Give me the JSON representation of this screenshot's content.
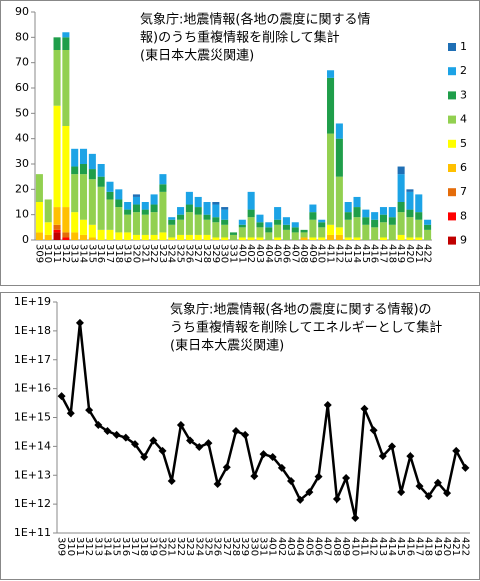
{
  "chart_data": [
    {
      "type": "stacked_bar",
      "title": [
        "気象庁:地震情報(各地の震度に関する情",
        "報)のうち重複情報を削除して集計",
        "(東日本大震災関連)"
      ],
      "categories": [
        "309",
        "310",
        "311",
        "312",
        "313",
        "314",
        "315",
        "316",
        "317",
        "318",
        "319",
        "320",
        "321",
        "322",
        "323",
        "324",
        "325",
        "326",
        "327",
        "328",
        "329",
        "330",
        "331",
        "401",
        "402",
        "403",
        "404",
        "405",
        "406",
        "407",
        "408",
        "409",
        "410",
        "411",
        "412",
        "413",
        "414",
        "415",
        "416",
        "417",
        "418",
        "419",
        "420",
        "421",
        "422"
      ],
      "ylim": [
        0,
        90
      ],
      "yticks": [
        0,
        10,
        20,
        30,
        40,
        50,
        60,
        70,
        80,
        90
      ],
      "grid": false,
      "legend": "right",
      "series": [
        {
          "name": "1",
          "color": "#1f6fb5",
          "values": [
            0,
            0,
            0,
            0,
            0,
            0,
            0,
            0,
            0,
            0,
            0,
            1,
            0,
            0,
            0,
            0,
            0,
            0,
            0,
            0,
            1,
            1,
            0,
            0,
            0,
            0,
            0,
            0,
            0,
            0,
            0,
            0,
            0,
            0,
            0,
            0,
            0,
            0,
            0,
            0,
            0,
            3,
            1,
            0,
            0
          ]
        },
        {
          "name": "2",
          "color": "#1ca3e6",
          "values": [
            0,
            0,
            0,
            2,
            7,
            6,
            6,
            5,
            4,
            4,
            3,
            3,
            3,
            4,
            4,
            1,
            3,
            5,
            4,
            5,
            5,
            4,
            0,
            2,
            7,
            3,
            2,
            5,
            3,
            2,
            0,
            3,
            1,
            3,
            6,
            4,
            4,
            3,
            3,
            3,
            4,
            11,
            7,
            7,
            2
          ]
        },
        {
          "name": "3",
          "color": "#1f9e4a",
          "values": [
            0,
            0,
            5,
            5,
            3,
            4,
            4,
            4,
            3,
            3,
            2,
            3,
            2,
            3,
            3,
            2,
            2,
            3,
            3,
            2,
            2,
            2,
            1,
            1,
            3,
            2,
            2,
            2,
            2,
            2,
            1,
            3,
            2,
            22,
            15,
            3,
            4,
            3,
            3,
            3,
            3,
            4,
            3,
            3,
            2
          ]
        },
        {
          "name": "4",
          "color": "#92d050",
          "values": [
            11,
            9,
            22,
            30,
            15,
            18,
            18,
            17,
            12,
            10,
            7,
            9,
            8,
            9,
            16,
            5,
            6,
            9,
            8,
            6,
            6,
            5,
            2,
            4,
            8,
            4,
            3,
            5,
            4,
            3,
            2,
            7,
            4,
            36,
            20,
            7,
            8,
            6,
            5,
            6,
            6,
            9,
            8,
            7,
            4
          ]
        },
        {
          "name": "5",
          "color": "#ffff00",
          "values": [
            12,
            5,
            40,
            32,
            8,
            6,
            5,
            4,
            4,
            3,
            3,
            2,
            2,
            2,
            3,
            1,
            2,
            2,
            2,
            2,
            1,
            1,
            0,
            1,
            1,
            1,
            0,
            1,
            0,
            0,
            0,
            1,
            1,
            4,
            3,
            1,
            1,
            0,
            0,
            1,
            0,
            2,
            1,
            1,
            0
          ]
        },
        {
          "name": "6",
          "color": "#ffc000",
          "values": [
            3,
            2,
            7,
            10,
            3,
            2,
            1,
            0,
            0,
            0,
            0,
            0,
            0,
            0,
            0,
            0,
            0,
            0,
            0,
            0,
            0,
            0,
            0,
            0,
            0,
            0,
            0,
            0,
            0,
            0,
            1,
            0,
            0,
            2,
            2,
            0,
            0,
            0,
            0,
            0,
            0,
            0,
            0,
            0,
            0
          ]
        },
        {
          "name": "7",
          "color": "#e46c0a",
          "values": [
            0,
            0,
            2,
            2,
            0,
            0,
            0,
            0,
            0,
            0,
            0,
            0,
            0,
            0,
            0,
            0,
            0,
            0,
            0,
            0,
            0,
            0,
            0,
            0,
            0,
            0,
            0,
            0,
            0,
            0,
            0,
            0,
            0,
            0,
            0,
            0,
            0,
            0,
            0,
            0,
            0,
            0,
            0,
            0,
            0
          ]
        },
        {
          "name": "8",
          "color": "#ff0000",
          "values": [
            0,
            0,
            1,
            1,
            0,
            0,
            0,
            0,
            0,
            0,
            0,
            0,
            0,
            0,
            0,
            0,
            0,
            0,
            0,
            0,
            0,
            0,
            0,
            0,
            0,
            0,
            0,
            0,
            0,
            0,
            0,
            0,
            0,
            0,
            0,
            0,
            0,
            0,
            0,
            0,
            0,
            0,
            0,
            0,
            0
          ]
        },
        {
          "name": "9",
          "color": "#c00000",
          "values": [
            0,
            0,
            3,
            0,
            0,
            0,
            0,
            0,
            0,
            0,
            0,
            0,
            0,
            0,
            0,
            0,
            0,
            0,
            0,
            0,
            0,
            0,
            0,
            0,
            0,
            0,
            0,
            0,
            0,
            0,
            0,
            0,
            0,
            0,
            0,
            0,
            0,
            0,
            0,
            0,
            0,
            0,
            0,
            0,
            0
          ]
        }
      ]
    },
    {
      "type": "line",
      "title": [
        "気象庁:地震情報(各地の震度に関する情報)の",
        "うち重複情報を削除してエネルギーとして集計",
        "(東日本大震災関連)"
      ],
      "categories": [
        "309",
        "310",
        "311",
        "312",
        "313",
        "314",
        "315",
        "316",
        "317",
        "318",
        "319",
        "320",
        "321",
        "322",
        "323",
        "324",
        "325",
        "326",
        "327",
        "328",
        "329",
        "330",
        "331",
        "401",
        "402",
        "403",
        "404",
        "405",
        "406",
        "407",
        "408",
        "409",
        "410",
        "411",
        "412",
        "413",
        "414",
        "415",
        "416",
        "417",
        "418",
        "419",
        "420",
        "421",
        "422"
      ],
      "log": true,
      "ylim": [
        100000000000.0,
        1e+19
      ],
      "yticks": [
        {
          "value": 100000000000.0,
          "label": "1E+11"
        },
        {
          "value": 1000000000000.0,
          "label": "1E+12"
        },
        {
          "value": 10000000000000.0,
          "label": "1E+13"
        },
        {
          "value": 100000000000000.0,
          "label": "1E+14"
        },
        {
          "value": 1000000000000000.0,
          "label": "1E+15"
        },
        {
          "value": 1e+16,
          "label": "1E+16"
        },
        {
          "value": 1e+17,
          "label": "1E+17"
        },
        {
          "value": 1e+18,
          "label": "1E+18"
        },
        {
          "value": 1e+19,
          "label": "1E+19"
        }
      ],
      "color": "#000000",
      "values": [
        5500000000000000.0,
        1400000000000000.0,
        1.9e+18,
        1800000000000000.0,
        550000000000000.0,
        340000000000000.0,
        250000000000000.0,
        200000000000000.0,
        120000000000000.0,
        43000000000000.0,
        160000000000000.0,
        70000000000000.0,
        6300000000000.0,
        550000000000000.0,
        160000000000000.0,
        95000000000000.0,
        130000000000000.0,
        5000000000000.0,
        19000000000000.0,
        340000000000000.0,
        250000000000000.0,
        9300000000000.0,
        54000000000000.0,
        43000000000000.0,
        18000000000000.0,
        6300000000000.0,
        1400000000000.0,
        2600000000000.0,
        9000000000000.0,
        2700000000000000.0,
        1500000000000.0,
        8000000000000.0,
        330000000000.0,
        2000000000000000.0,
        360000000000000.0,
        46000000000000.0,
        100000000000000.0,
        2600000000000.0,
        46000000000000.0,
        4200000000000.0,
        1900000000000.0,
        5500000000000.0,
        2400000000000.0,
        70000000000000.0,
        18000000000000.0
      ]
    }
  ]
}
